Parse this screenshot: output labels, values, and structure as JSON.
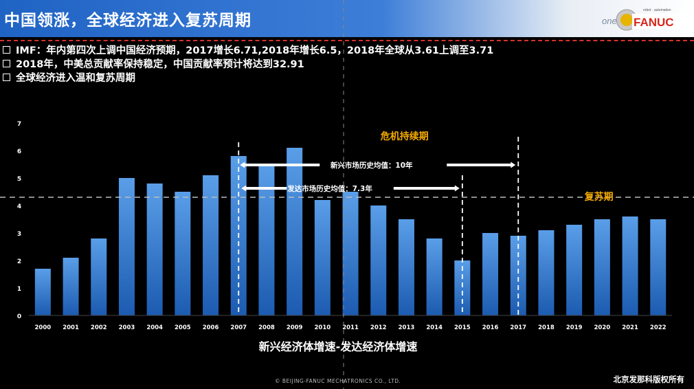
{
  "header": {
    "title": "中国领涨，全球经济进入复苏周期",
    "logo_text": "FANUC",
    "logo_prefix": "one",
    "logo_tagline": "robot · automation"
  },
  "bullets": [
    "IMF：年内第四次上调中国经济预期，2017增长6.71,2018年增长6.5，2018年全球从3.61上调至3.71",
    "2018年，中美总贡献率保持稳定，中国贡献率预计将达到32.91",
    "全球经济进入温和复苏周期"
  ],
  "chart_data": {
    "type": "bar",
    "categories": [
      "2000",
      "2001",
      "2002",
      "2003",
      "2004",
      "2005",
      "2006",
      "2007",
      "2008",
      "2009",
      "2010",
      "2011",
      "2012",
      "2013",
      "2014",
      "2015",
      "2016",
      "2017",
      "2018",
      "2019",
      "2020",
      "2021",
      "2022"
    ],
    "values": [
      1.7,
      2.1,
      2.8,
      5.0,
      4.8,
      4.5,
      5.1,
      5.8,
      5.5,
      6.1,
      4.2,
      4.5,
      4.0,
      3.5,
      2.8,
      2.0,
      3.0,
      2.9,
      3.1,
      3.3,
      3.5,
      3.6,
      3.5
    ],
    "ylim": [
      0,
      7
    ],
    "yticks": [
      0,
      1,
      2,
      3,
      4,
      5,
      6,
      7
    ],
    "xlabel": "新兴经济体增速-发达经济体增速",
    "reference_line": 4.3,
    "vlines": [
      "2007",
      "2015",
      "2017"
    ],
    "annotations": {
      "crisis": "危机持续期",
      "recovery": "复苏期",
      "emerging_avg": "新兴市场历史均值：10年",
      "developed_avg": "发达市场历史均值：7.3年"
    },
    "colors": {
      "bar_top": "#5a9ee8",
      "bar_bottom": "#1c5bb0",
      "accent": "#f2a900"
    }
  },
  "footer": {
    "copyright": "©   BEIJING-FANUC MECHATRONICS CO., LTD.",
    "rights": "北京发那科版权所有"
  }
}
